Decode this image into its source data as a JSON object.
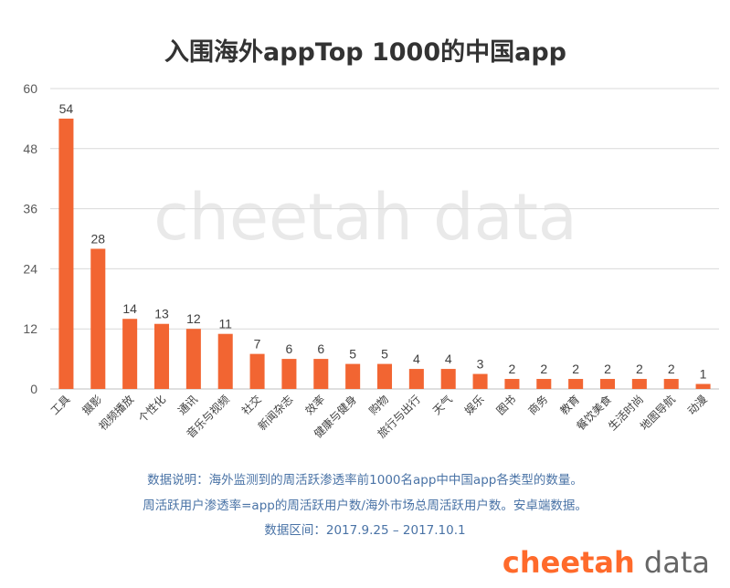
{
  "chart_data": {
    "type": "bar",
    "title": "入围海外appTop 1000的中国app",
    "categories": [
      "工具",
      "摄影",
      "视频播放",
      "个性化",
      "通讯",
      "音乐与视频",
      "社交",
      "新闻杂志",
      "效率",
      "健康与健身",
      "购物",
      "旅行与出行",
      "天气",
      "娱乐",
      "图书",
      "商务",
      "教育",
      "餐饮美食",
      "生活时尚",
      "地图导航",
      "动漫"
    ],
    "values": [
      54,
      28,
      14,
      13,
      12,
      11,
      7,
      6,
      6,
      5,
      5,
      4,
      4,
      3,
      2,
      2,
      2,
      2,
      2,
      2,
      1
    ],
    "ylim": [
      0,
      60
    ],
    "yticks": [
      0,
      12,
      24,
      36,
      48,
      60
    ],
    "grid": true,
    "bar_color": "#f26532",
    "watermark": "cheetah data"
  },
  "notes": {
    "line1": "数据说明：海外监测到的周活跃渗透率前1000名app中中国app各类型的数量。",
    "line2": "周活跃用户渗透率=app的周活跃用户数/海外市场总周活跃用户数。安卓端数据。",
    "line3": "数据区间：2017.9.25 – 2017.10.1"
  },
  "logo": {
    "part1": "cheetah",
    "part2": " data"
  },
  "colors": {
    "brand": "#ff6a2b",
    "note": "#4a73a6"
  }
}
